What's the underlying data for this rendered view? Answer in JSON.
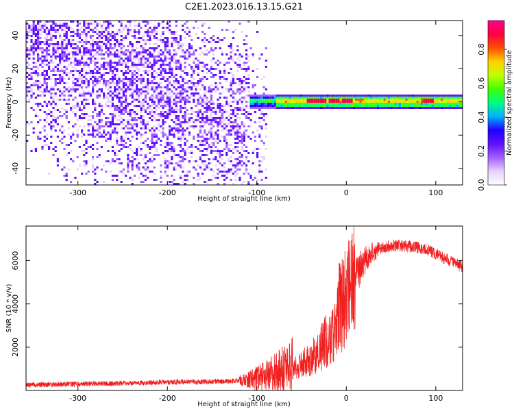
{
  "figure": {
    "title": "C2E1.2023.016.13.15.G21"
  },
  "colors": {
    "snr_line": "#f02020",
    "background": "#ffffff",
    "axis": "#000000",
    "colormap": [
      "#ffffff",
      "#e8d0ff",
      "#a060ff",
      "#6010ff",
      "#2000ff",
      "#00b0ff",
      "#00ff80",
      "#40ff00",
      "#c0ff00",
      "#ffd000",
      "#ff5000",
      "#ff0040",
      "#ff0090"
    ]
  },
  "chart_data": [
    {
      "type": "heatmap",
      "name": "spectrogram",
      "title": "",
      "xlabel": "Height of straight line (km)",
      "ylabel": "Frequency (Hz)",
      "xlim": [
        -358,
        130
      ],
      "ylim": [
        -50,
        49
      ],
      "xticks": [
        -300,
        -200,
        -100,
        0,
        100
      ],
      "yticks": [
        -40,
        -20,
        0,
        20,
        40
      ],
      "colorbar": {
        "label": "Normalized spectral amplitude",
        "range": [
          0,
          0.97
        ],
        "ticks": [
          0.0,
          0.2,
          0.4,
          0.6,
          0.8
        ]
      },
      "description_points": {
        "noise_region_x": [
          -358,
          -100
        ],
        "carrier_band_x": [
          -100,
          130
        ],
        "carrier_frequency": 1,
        "peak_amplitude_locations_x": [
          -40,
          -30,
          -15,
          0,
          90
        ]
      }
    },
    {
      "type": "line",
      "name": "snr",
      "title": "",
      "xlabel": "Height of straight line (km)",
      "ylabel": "SNR (10 * v/v)",
      "xlim": [
        -358,
        130
      ],
      "ylim": [
        0,
        7600
      ],
      "xticks": [
        -300,
        -200,
        -100,
        0,
        100
      ],
      "yticks": [
        2000,
        4000,
        6000
      ],
      "series": [
        {
          "x": [
            -358,
            -300,
            -250,
            -200,
            -150,
            -120,
            -100,
            -80,
            -60,
            -40,
            -30,
            -20,
            -10,
            0,
            10,
            20,
            30,
            40,
            50,
            60,
            70,
            80,
            90,
            100,
            110,
            120,
            130
          ],
          "y": [
            250,
            300,
            330,
            380,
            400,
            450,
            550,
            800,
            1200,
            1800,
            2300,
            3000,
            3600,
            4300,
            5200,
            6000,
            6400,
            6600,
            6700,
            6700,
            6650,
            6600,
            6500,
            6300,
            6100,
            5900,
            5700
          ]
        }
      ]
    }
  ]
}
